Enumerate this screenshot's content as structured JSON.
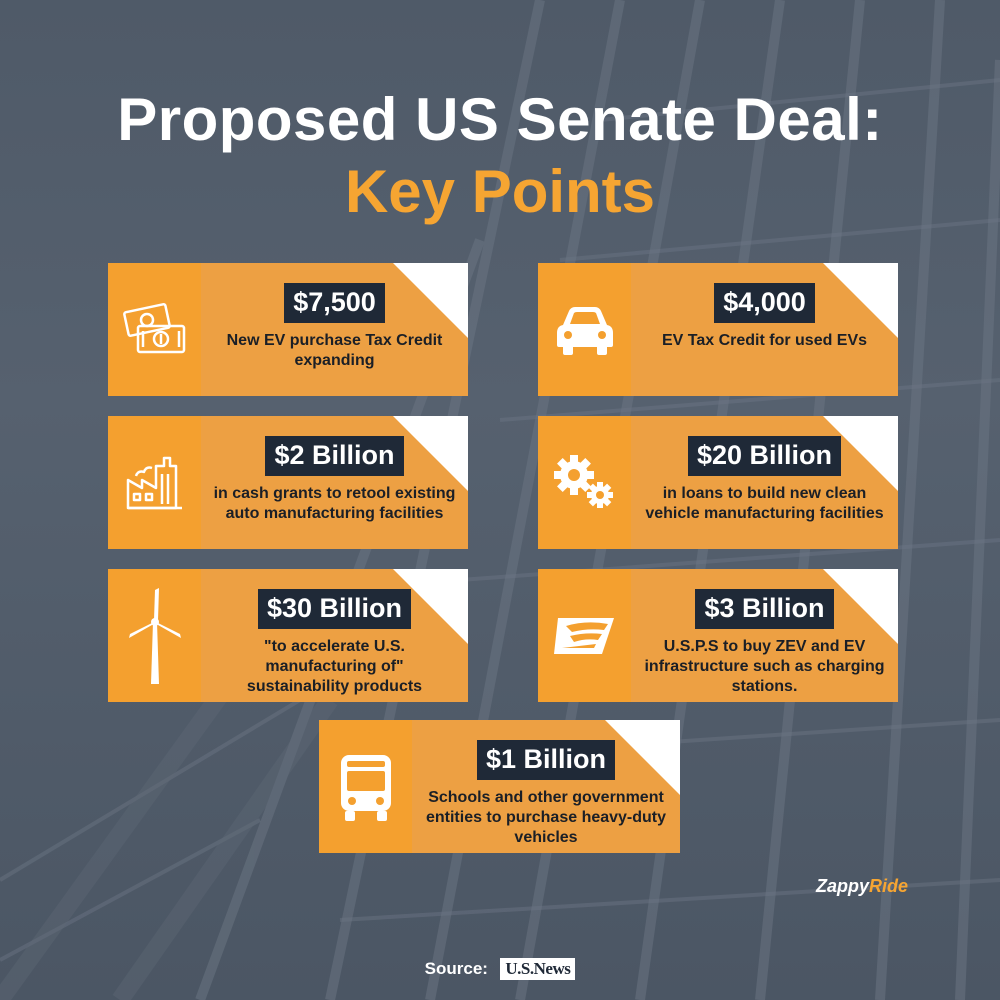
{
  "title": {
    "line1": "Proposed US Senate Deal:",
    "line2": "Key Points"
  },
  "cards": [
    {
      "amount": "$7,500",
      "desc": "New EV purchase Tax Credit expanding",
      "icon": "money-icon"
    },
    {
      "amount": "$4,000",
      "desc": "EV Tax Credit for used EVs",
      "icon": "car-icon"
    },
    {
      "amount": "$2 Billion",
      "desc": "in cash grants to retool existing auto manufacturing facilities",
      "icon": "factory-icon"
    },
    {
      "amount": "$20 Billion",
      "desc": "in loans to build new clean vehicle manufacturing facilities",
      "icon": "gears-icon"
    },
    {
      "amount": "$30 Billion",
      "desc": "\"to accelerate U.S. manufacturing of\" sustainability products",
      "icon": "wind-turbine-icon"
    },
    {
      "amount": "$3 Billion",
      "desc": "U.S.P.S to buy ZEV and EV infrastructure such as charging stations.",
      "icon": "usps-eagle-icon"
    },
    {
      "amount": "$1 Billion",
      "desc": "Schools and other government entities to purchase heavy-duty vehicles",
      "icon": "bus-icon"
    }
  ],
  "brand": {
    "part1": "Zappy",
    "part2": "Ride"
  },
  "source": {
    "label": "Source:",
    "logo_text": "U.S.News"
  },
  "colors": {
    "accent": "#f6a532",
    "card": "#eda043",
    "icon_panel": "#f4a02f",
    "amount_bg": "#1f2937",
    "background": "#525d6b"
  }
}
